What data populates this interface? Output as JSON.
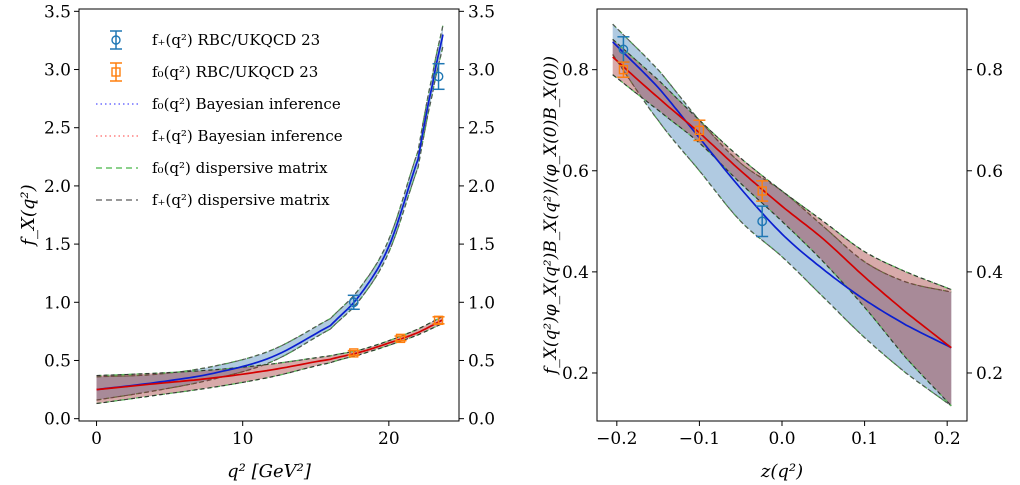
{
  "chart_data": [
    {
      "type": "line",
      "xlabel": "q² [GeV²]",
      "ylabel": "f_X(q²)",
      "xlim": [
        -1.2,
        24.8
      ],
      "ylim": [
        -0.02,
        3.52
      ],
      "x_ticks": [
        0,
        10,
        20
      ],
      "y_ticks": [
        0.0,
        0.5,
        1.0,
        1.5,
        2.0,
        2.5,
        3.0,
        3.5
      ],
      "y_tick_labels": [
        "0.0",
        "0.5",
        "1.0",
        "1.5",
        "2.0",
        "2.5",
        "3.0",
        "3.5"
      ],
      "right_y_ticks": [
        0.0,
        0.5,
        1.0,
        1.5,
        2.0,
        2.5,
        3.0,
        3.5
      ],
      "legend_position": "top-left",
      "legend": [
        {
          "label": "f₊(q²) RBC/UKQCD 23",
          "style": "errorbar-circle",
          "color": "#1f77b4"
        },
        {
          "label": "f₀(q²) RBC/UKQCD 23",
          "style": "errorbar-square",
          "color": "#ff7f0e"
        },
        {
          "label": "f₀(q²) Bayesian inference",
          "style": "dotted",
          "color": "#6f6fff"
        },
        {
          "label": "f₊(q²) Bayesian inference",
          "style": "dotted",
          "color": "#ff8080"
        },
        {
          "label": "f₀(q²) dispersive matrix",
          "style": "dashed",
          "color": "#66c266"
        },
        {
          "label": "f₊(q²) dispersive matrix",
          "style": "dashed",
          "color": "#777777"
        }
      ],
      "points": [
        {
          "series": "f+ RBC/UKQCD 23",
          "x": 17.6,
          "y": 1.0,
          "err": 0.06
        },
        {
          "series": "f+ RBC/UKQCD 23",
          "x": 23.4,
          "y": 2.94,
          "err": 0.11
        },
        {
          "series": "f0 RBC/UKQCD 23",
          "x": 17.6,
          "y": 0.565,
          "err": 0.02
        },
        {
          "series": "f0 RBC/UKQCD 23",
          "x": 20.8,
          "y": 0.69,
          "err": 0.02
        },
        {
          "series": "f0 RBC/UKQCD 23",
          "x": 23.4,
          "y": 0.845,
          "err": 0.03
        }
      ],
      "curves": [
        {
          "name": "f+",
          "x": [
            0,
            4,
            8,
            12,
            16,
            18,
            20,
            22,
            23,
            23.7
          ],
          "y": [
            0.25,
            0.31,
            0.39,
            0.53,
            0.8,
            1.06,
            1.48,
            2.23,
            2.88,
            3.3
          ],
          "lower": [
            0.16,
            0.24,
            0.34,
            0.49,
            0.77,
            1.02,
            1.43,
            2.16,
            2.8,
            3.2
          ],
          "upper": [
            0.36,
            0.38,
            0.45,
            0.59,
            0.86,
            1.12,
            1.54,
            2.3,
            2.96,
            3.38
          ]
        },
        {
          "name": "f0",
          "x": [
            0,
            4,
            8,
            12,
            16,
            18,
            20,
            22,
            23.7
          ],
          "y": [
            0.25,
            0.3,
            0.35,
            0.42,
            0.51,
            0.57,
            0.65,
            0.74,
            0.85
          ],
          "lower": [
            0.13,
            0.2,
            0.27,
            0.36,
            0.48,
            0.55,
            0.63,
            0.72,
            0.82
          ],
          "upper": [
            0.37,
            0.39,
            0.42,
            0.47,
            0.54,
            0.59,
            0.67,
            0.77,
            0.88
          ]
        }
      ]
    },
    {
      "type": "line",
      "xlabel": "z(q²)",
      "ylabel": "f_X(q²)φ_X(q²)B_X(q²)/(φ_X(0)B_X(0))",
      "xlim": [
        -0.224,
        0.224
      ],
      "ylim": [
        0.105,
        0.92
      ],
      "x_ticks": [
        -0.2,
        -0.1,
        0.0,
        0.1,
        0.2
      ],
      "x_tick_labels": [
        "−0.2",
        "−0.1",
        "0.0",
        "0.1",
        "0.2"
      ],
      "y_ticks": [
        0.2,
        0.4,
        0.6,
        0.8
      ],
      "y_tick_labels": [
        "0.2",
        "0.4",
        "0.6",
        "0.8"
      ],
      "right_y_ticks": [
        0.2,
        0.4,
        0.6,
        0.8
      ],
      "points": [
        {
          "series": "f+ RBC/UKQCD 23",
          "x": -0.192,
          "y": 0.84,
          "err": 0.025
        },
        {
          "series": "f+ RBC/UKQCD 23",
          "x": -0.024,
          "y": 0.5,
          "err": 0.03
        },
        {
          "series": "f0 RBC/UKQCD 23",
          "x": -0.192,
          "y": 0.8,
          "err": 0.015
        },
        {
          "series": "f0 RBC/UKQCD 23",
          "x": -0.1,
          "y": 0.68,
          "err": 0.02
        },
        {
          "series": "f0 RBC/UKQCD 23",
          "x": -0.024,
          "y": 0.56,
          "err": 0.02
        }
      ],
      "curves": [
        {
          "name": "f+",
          "x": [
            -0.205,
            -0.15,
            -0.1,
            -0.05,
            0.0,
            0.05,
            0.1,
            0.15,
            0.205
          ],
          "y": [
            0.855,
            0.765,
            0.665,
            0.565,
            0.475,
            0.405,
            0.345,
            0.295,
            0.25
          ],
          "lower": [
            0.83,
            0.7,
            0.6,
            0.5,
            0.43,
            0.35,
            0.27,
            0.2,
            0.135
          ],
          "upper": [
            0.89,
            0.8,
            0.7,
            0.615,
            0.56,
            0.49,
            0.42,
            0.38,
            0.36
          ]
        },
        {
          "name": "f0",
          "x": [
            -0.205,
            -0.15,
            -0.1,
            -0.05,
            0.0,
            0.05,
            0.1,
            0.15,
            0.205
          ],
          "y": [
            0.825,
            0.745,
            0.675,
            0.6,
            0.53,
            0.465,
            0.39,
            0.32,
            0.25
          ],
          "lower": [
            0.79,
            0.72,
            0.655,
            0.575,
            0.5,
            0.42,
            0.33,
            0.23,
            0.135
          ],
          "upper": [
            0.86,
            0.78,
            0.7,
            0.625,
            0.56,
            0.5,
            0.44,
            0.4,
            0.365
          ]
        }
      ]
    }
  ]
}
